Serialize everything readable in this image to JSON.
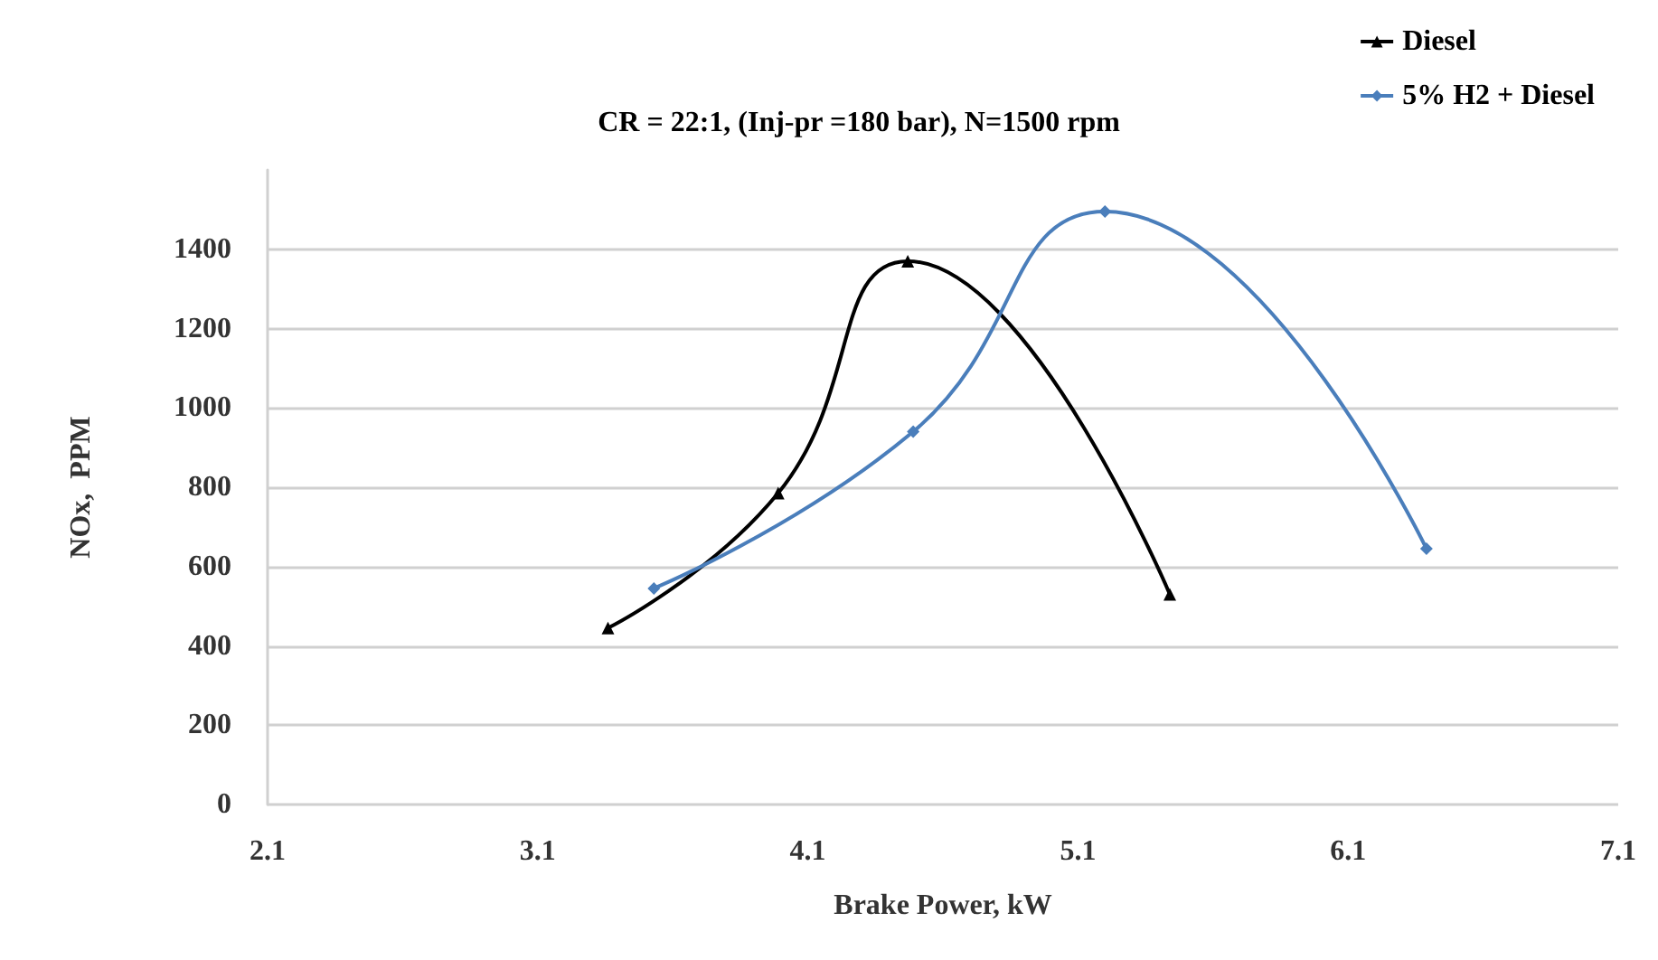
{
  "chart_data": {
    "type": "line",
    "title": "CR = 22:1, (Inj-pr =180 bar), N=1500 rpm",
    "xlabel": "Brake Power, kW",
    "ylabel": "NOx,  PPM",
    "series": [
      {
        "name": "Diesel",
        "color": "#000000",
        "marker": "triangle",
        "x": [
          3.36,
          3.99,
          4.47,
          5.44
        ],
        "values": [
          445,
          785,
          1370,
          530
        ]
      },
      {
        "name": "5% H2 + Diesel",
        "color": "#4a7ebb",
        "marker": "diamond",
        "x": [
          3.53,
          4.49,
          5.2,
          6.39
        ],
        "values": [
          545,
          940,
          1495,
          645
        ]
      }
    ],
    "xlim": [
      2.1,
      7.1
    ],
    "xticks": [
      2.1,
      3.1,
      4.1,
      5.1,
      6.1,
      7.1
    ],
    "ylim": [
      0,
      1600
    ],
    "yticks": [
      0,
      200,
      400,
      600,
      800,
      1000,
      1200,
      1400
    ],
    "grid": "y",
    "legend": "top right"
  }
}
